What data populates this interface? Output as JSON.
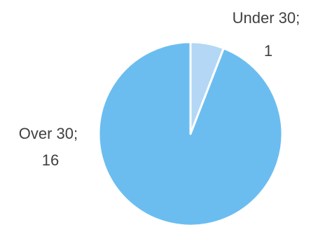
{
  "chart_data": {
    "type": "pie",
    "title": "",
    "legend": "none",
    "slices": [
      {
        "label": "Under 30",
        "value": 1,
        "color": "#b3d7f5",
        "label_lines": [
          "Under 30;",
          "1"
        ]
      },
      {
        "label": "Over 30",
        "value": 16,
        "color": "#6bbdf0",
        "label_lines": [
          "Over 30;",
          "16"
        ]
      }
    ]
  }
}
